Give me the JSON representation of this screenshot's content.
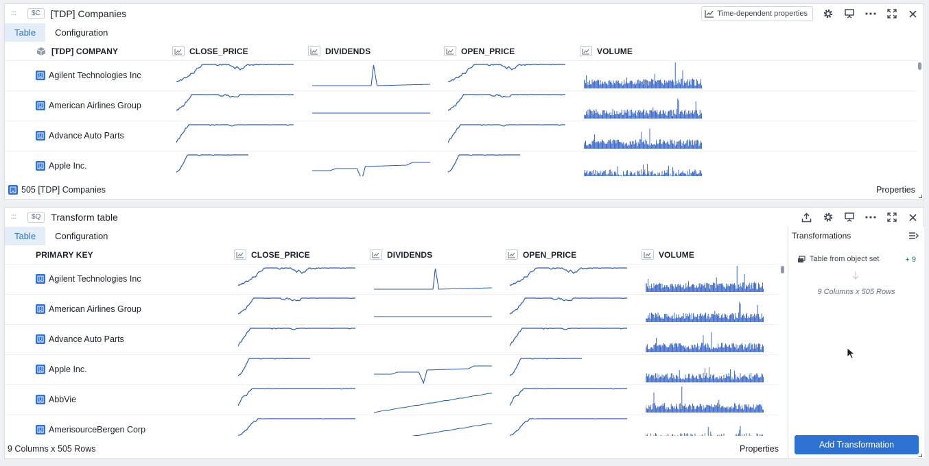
{
  "panel_top": {
    "variable": "$C",
    "title": "[TDP] Companies",
    "time_dependent_button": "Time-dependent properties",
    "tabs": [
      "Table",
      "Configuration"
    ],
    "columns": [
      "[TDP] COMPANY",
      "CLOSE_PRICE",
      "DIVIDENDS",
      "OPEN_PRICE",
      "VOLUME"
    ],
    "rows": [
      "Agilent Technologies Inc",
      "American Airlines Group",
      "Advance Auto Parts",
      "Apple Inc."
    ],
    "footer_count": "505 [TDP] Companies",
    "footer_properties": "Properties"
  },
  "panel_bottom": {
    "variable": "$Q",
    "title": "Transform table",
    "tabs": [
      "Table",
      "Configuration"
    ],
    "columns": [
      "PRIMARY KEY",
      "CLOSE_PRICE",
      "DIVIDENDS",
      "OPEN_PRICE",
      "VOLUME"
    ],
    "rows": [
      "Agilent Technologies Inc",
      "American Airlines Group",
      "Advance Auto Parts",
      "Apple Inc.",
      "AbbVie",
      "AmerisourceBergen Corp"
    ],
    "footer_count": "9 Columns x 505 Rows",
    "footer_properties": "Properties",
    "transformations": {
      "heading": "Transformations",
      "step_label": "Table from object set",
      "step_badge": "+ 9",
      "summary": "9 Columns x 505 Rows",
      "add_button": "Add Transformation"
    }
  },
  "colors": {
    "accent": "#2d72d2",
    "spark": "#2458c7"
  }
}
